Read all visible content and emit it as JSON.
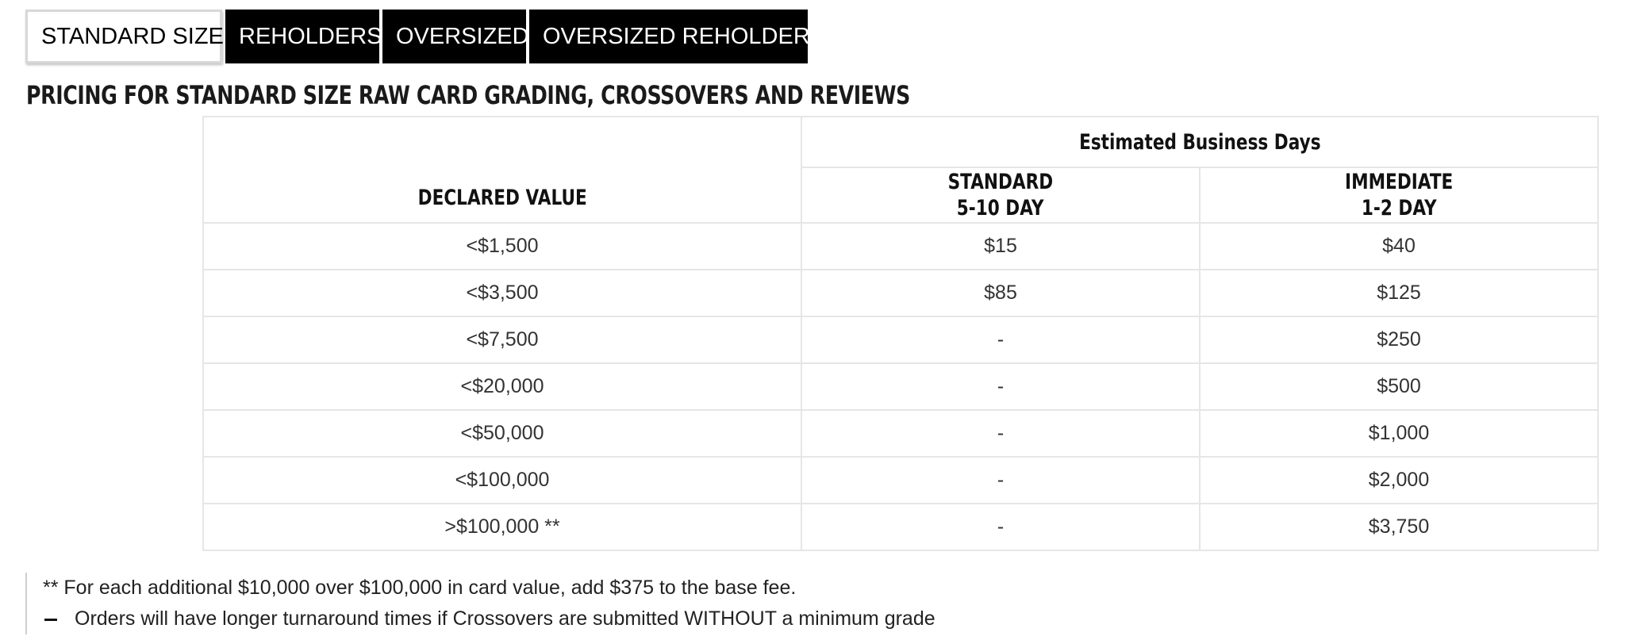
{
  "tabs": [
    {
      "label": "STANDARD SIZE",
      "active": true
    },
    {
      "label": "REHOLDERS",
      "active": false
    },
    {
      "label": "OVERSIZED",
      "active": false
    },
    {
      "label": "OVERSIZED REHOLDERS",
      "active": false
    }
  ],
  "heading": "PRICING FOR STANDARD SIZE RAW CARD GRADING, CROSSOVERS AND REVIEWS",
  "table": {
    "group_header": "Estimated Business Days",
    "col_declared": "DECLARED VALUE",
    "col_standard": {
      "line1": "STANDARD",
      "line2": "5-10 DAY"
    },
    "col_immediate": {
      "line1": "IMMEDIATE",
      "line2": "1-2 DAY"
    },
    "rows": [
      {
        "value": "<$1,500",
        "standard": "$15",
        "immediate": "$40"
      },
      {
        "value": "<$3,500",
        "standard": "$85",
        "immediate": "$125"
      },
      {
        "value": "<$7,500",
        "standard": "-",
        "immediate": "$250"
      },
      {
        "value": "<$20,000",
        "standard": "-",
        "immediate": "$500"
      },
      {
        "value": "<$50,000",
        "standard": "-",
        "immediate": "$1,000"
      },
      {
        "value": "<$100,000",
        "standard": "-",
        "immediate": "$2,000"
      },
      {
        "value": ">$100,000 **",
        "standard": "-",
        "immediate": "$3,750"
      }
    ]
  },
  "notes": {
    "line1": "** For each additional $10,000 over $100,000 in card value, add $375 to the base fee.",
    "line2": "Orders will have longer turnaround times if Crossovers are submitted WITHOUT a minimum grade"
  }
}
